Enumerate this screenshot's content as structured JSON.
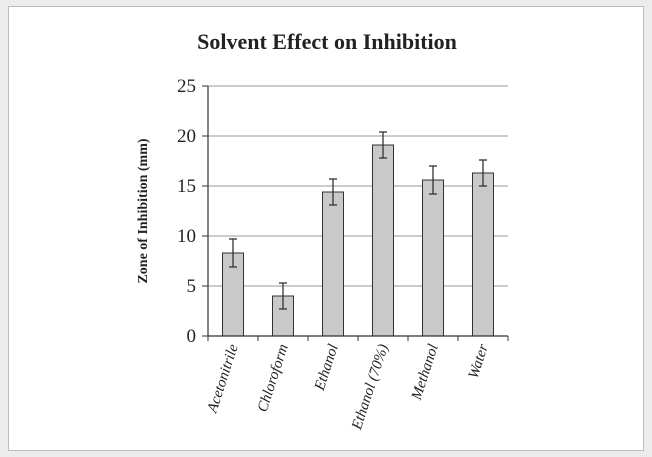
{
  "chart_data": {
    "type": "bar",
    "title": "Solvent Effect on Inhibition",
    "xlabel": "",
    "ylabel": "Zone of Inhibition (mm)",
    "categories": [
      "Acetonitrile",
      "Chloroform",
      "Ethanol",
      "Ethanol (70%)",
      "Methanol",
      "Water"
    ],
    "values": [
      8.3,
      4.0,
      14.4,
      19.1,
      15.6,
      16.3
    ],
    "errors": [
      1.4,
      1.3,
      1.3,
      1.3,
      1.4,
      1.3
    ],
    "ylim": [
      0,
      25
    ],
    "yticks": [
      0,
      5,
      10,
      15,
      20,
      25
    ],
    "grid": true,
    "legend": "none",
    "colors": {
      "bar_fill": "#c9c9c9",
      "bar_stroke": "#333333",
      "grid": "#9a9a9a",
      "text": "#222222"
    }
  }
}
